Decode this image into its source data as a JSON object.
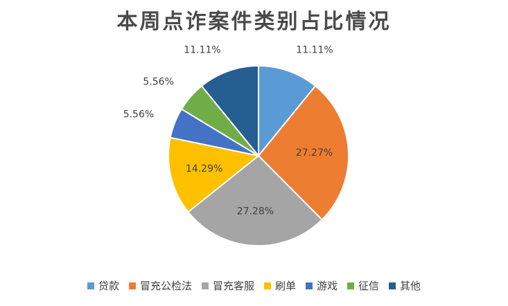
{
  "chart_data": {
    "type": "pie",
    "title": "本周点诈案件类别占比情况",
    "slices": [
      {
        "label": "贷款",
        "value": 11.11,
        "display": "11.11%",
        "color": "#5B9BD5"
      },
      {
        "label": "冒充公检法",
        "value": 27.27,
        "display": "27.27%",
        "color": "#ED7D31"
      },
      {
        "label": "冒充客服",
        "value": 27.28,
        "display": "27.28%",
        "color": "#A5A5A5"
      },
      {
        "label": "刷单",
        "value": 14.29,
        "display": "14.29%",
        "color": "#FFC000"
      },
      {
        "label": "游戏",
        "value": 5.56,
        "display": "5.56%",
        "color": "#4472C4"
      },
      {
        "label": "征信",
        "value": 5.56,
        "display": "5.56%",
        "color": "#70AD47"
      },
      {
        "label": "其他",
        "value": 11.11,
        "display": "11.11%",
        "color": "#255E91"
      }
    ],
    "start_angle": "12 o'clock",
    "direction": "clockwise",
    "legend_position": "bottom"
  }
}
